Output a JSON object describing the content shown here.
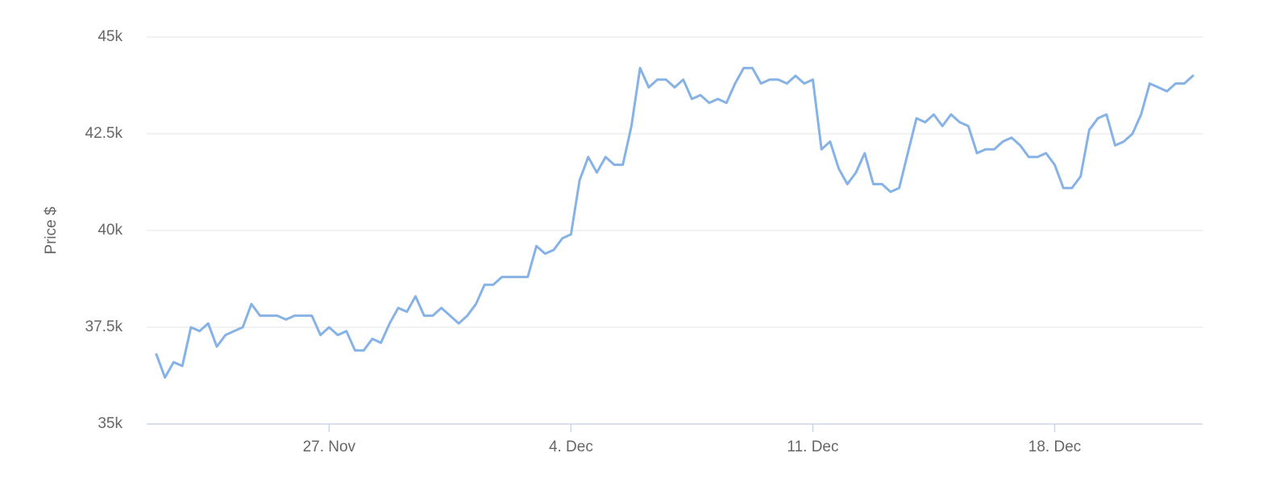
{
  "chart_data": {
    "type": "line",
    "y_label": "Price $",
    "color": "#86b2e6",
    "grid": true,
    "ylim": [
      35000,
      45000
    ],
    "yticks": [
      {
        "value": 35000,
        "label": "35k"
      },
      {
        "value": 37500,
        "label": "37.5k"
      },
      {
        "value": 40000,
        "label": "40k"
      },
      {
        "value": 42500,
        "label": "42.5k"
      },
      {
        "value": 45000,
        "label": "45k"
      }
    ],
    "categories": [
      null,
      null,
      null,
      null,
      null,
      null,
      null,
      null,
      null,
      null,
      null,
      null,
      null,
      null,
      null,
      null,
      null,
      null,
      null,
      null,
      "27. Nov",
      null,
      null,
      null,
      null,
      null,
      null,
      null,
      null,
      null,
      null,
      null,
      null,
      null,
      null,
      null,
      null,
      null,
      null,
      null,
      null,
      null,
      null,
      null,
      null,
      null,
      null,
      null,
      "4. Dec",
      null,
      null,
      null,
      null,
      null,
      null,
      null,
      null,
      null,
      null,
      null,
      null,
      null,
      null,
      null,
      null,
      null,
      null,
      null,
      null,
      null,
      null,
      null,
      null,
      null,
      null,
      null,
      "11. Dec",
      null,
      null,
      null,
      null,
      null,
      null,
      null,
      null,
      null,
      null,
      null,
      null,
      null,
      null,
      null,
      null,
      null,
      null,
      null,
      null,
      null,
      null,
      null,
      null,
      null,
      null,
      null,
      "18. Dec",
      null,
      null,
      null,
      null,
      null,
      null,
      null,
      null,
      null,
      null,
      null,
      null,
      null,
      null,
      null,
      null
    ],
    "values": [
      36800,
      36200,
      36600,
      36500,
      37500,
      37400,
      37600,
      37000,
      37300,
      37400,
      37500,
      38100,
      37800,
      37800,
      37800,
      37700,
      37800,
      37800,
      37800,
      37300,
      37500,
      37300,
      37400,
      36900,
      36900,
      37200,
      37100,
      37600,
      38000,
      37900,
      38300,
      37800,
      37800,
      38000,
      37800,
      37600,
      37800,
      38100,
      38600,
      38600,
      38800,
      38800,
      38800,
      38800,
      39600,
      39400,
      39500,
      39800,
      39900,
      41300,
      41900,
      41500,
      41900,
      41700,
      41700,
      42700,
      44200,
      43700,
      43900,
      43900,
      43700,
      43900,
      43400,
      43500,
      43300,
      43400,
      43300,
      43800,
      44200,
      44200,
      43800,
      43900,
      43900,
      43800,
      44000,
      43800,
      43900,
      42100,
      42300,
      41600,
      41200,
      41500,
      42000,
      41200,
      41200,
      41000,
      41100,
      42000,
      42900,
      42800,
      43000,
      42700,
      43000,
      42800,
      42700,
      42000,
      42100,
      42100,
      42300,
      42400,
      42200,
      41900,
      41900,
      42000,
      41700,
      41100,
      41100,
      41400,
      42600,
      42900,
      43000,
      42200,
      42300,
      42500,
      43000,
      43800,
      43700,
      43600,
      43800,
      43800,
      44000
    ]
  }
}
